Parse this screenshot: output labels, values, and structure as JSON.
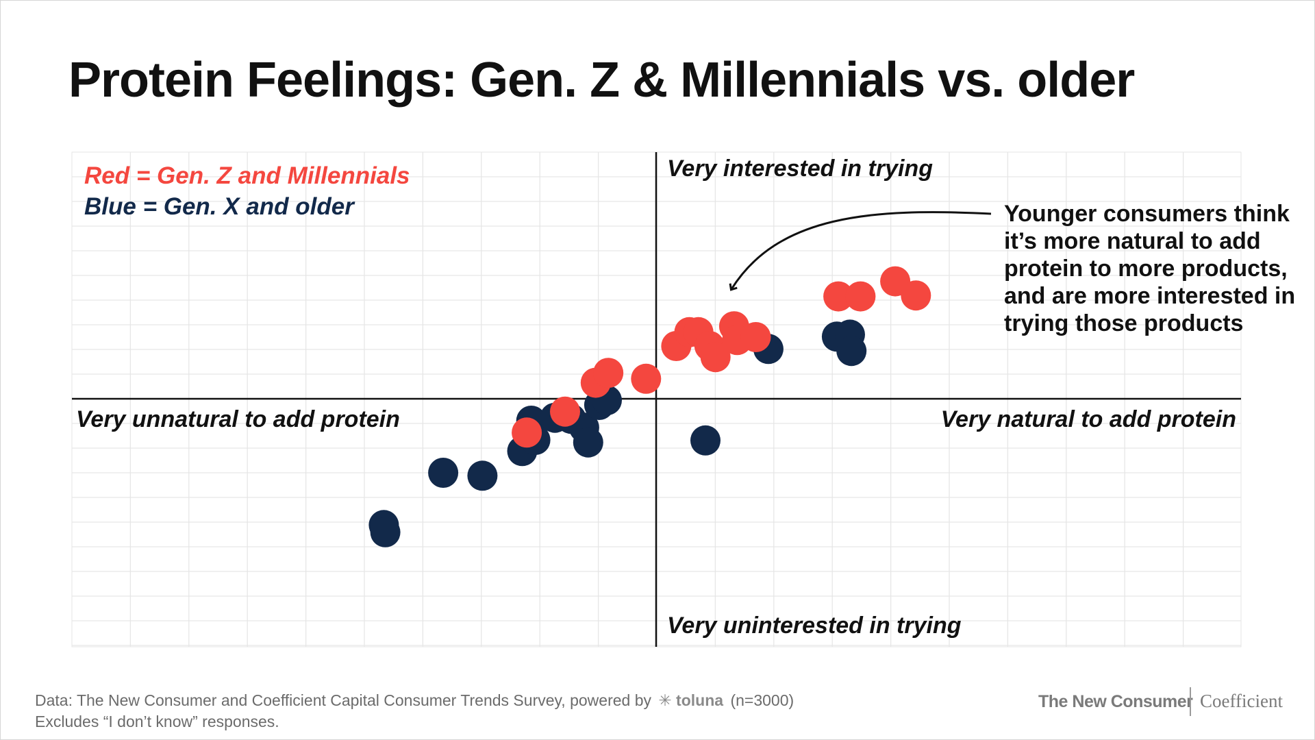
{
  "title": "Protein Feelings: Gen. Z & Millennials vs. older",
  "legend": {
    "red": "Red = Gen. Z and Millennials",
    "blue": "Blue = Gen. X and older"
  },
  "colors": {
    "red": "#f4473f",
    "blue": "#12294a",
    "grid": "#e6e6e6",
    "axis": "#111111"
  },
  "chart_data": {
    "type": "scatter",
    "title": "Protein Feelings: Gen. Z & Millennials vs. older",
    "xlabel": "Very unnatural to add protein → Very natural to add protein",
    "ylabel": "Very uninterested in trying → Very interested in trying",
    "xlim": [
      -100,
      100
    ],
    "ylim": [
      -100,
      100
    ],
    "grid": true,
    "quadrant_labels": {
      "top": "Very interested in trying",
      "bottom": "Very uninterested in trying",
      "left": "Very unnatural to add protein",
      "right": "Very natural to add protein"
    },
    "series": [
      {
        "name": "Gen. X and older",
        "color": "#12294a",
        "points": [
          [
            -54.1,
            -51.2
          ],
          [
            -53.8,
            -54.1
          ],
          [
            -42.3,
            -30.0
          ],
          [
            -34.5,
            -31.2
          ],
          [
            -24.8,
            -8.9
          ],
          [
            -26.6,
            -21.2
          ],
          [
            -24.0,
            -16.7
          ],
          [
            -20.1,
            -7.7
          ],
          [
            -16.9,
            -8.1
          ],
          [
            -14.3,
            -11.7
          ],
          [
            -13.5,
            -17.7
          ],
          [
            -11.3,
            -2.5
          ],
          [
            -9.8,
            -0.6
          ],
          [
            9.8,
            -16.9
          ],
          [
            22.3,
            20.2
          ],
          [
            35.9,
            25.2
          ],
          [
            38.5,
            26.0
          ],
          [
            38.8,
            19.4
          ]
        ]
      },
      {
        "name": "Gen. Z and Millennials",
        "color": "#f4473f",
        "points": [
          [
            -25.7,
            -13.7
          ],
          [
            -18.1,
            -5.2
          ],
          [
            -12.0,
            6.5
          ],
          [
            -9.5,
            10.5
          ],
          [
            -2.0,
            8.1
          ],
          [
            4.0,
            21.4
          ],
          [
            6.6,
            27.0
          ],
          [
            8.4,
            27.0
          ],
          [
            10.6,
            21.4
          ],
          [
            11.8,
            16.9
          ],
          [
            15.5,
            29.4
          ],
          [
            16.1,
            23.8
          ],
          [
            19.8,
            25.0
          ],
          [
            36.2,
            41.5
          ],
          [
            40.6,
            41.5
          ],
          [
            47.5,
            47.6
          ],
          [
            51.6,
            41.9
          ]
        ]
      }
    ]
  },
  "annotation": "Younger consumers think it’s more natural to add protein to more products, and are more interested in trying those products",
  "footer": {
    "source_prefix": "Data: The New Consumer and Coefficient Capital Consumer Trends Survey, powered by",
    "source_brand": "✳ toluna",
    "sample": "(n=3000)",
    "note": "Excludes “I don’t know” responses."
  },
  "brands": {
    "left": "The New Consumer",
    "right": "Coefficient"
  }
}
